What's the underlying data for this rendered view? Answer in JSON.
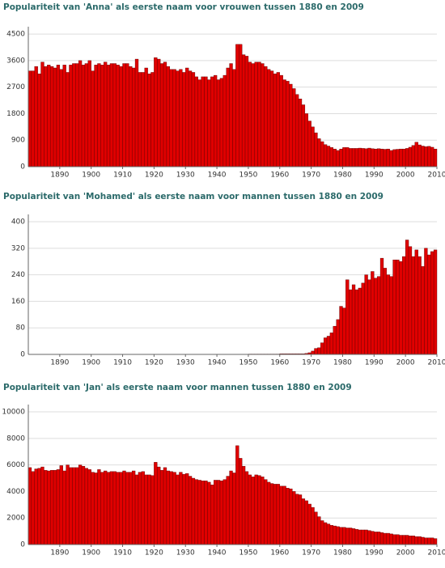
{
  "chart_data": [
    {
      "type": "bar",
      "title": "Populariteit van 'Anna' als eerste naam voor vrouwen tussen 1880 en 2009",
      "color": "#e00000",
      "x": [
        1880,
        1881,
        1882,
        1883,
        1884,
        1885,
        1886,
        1887,
        1888,
        1889,
        1890,
        1891,
        1892,
        1893,
        1894,
        1895,
        1896,
        1897,
        1898,
        1899,
        1900,
        1901,
        1902,
        1903,
        1904,
        1905,
        1906,
        1907,
        1908,
        1909,
        1910,
        1911,
        1912,
        1913,
        1914,
        1915,
        1916,
        1917,
        1918,
        1919,
        1920,
        1921,
        1922,
        1923,
        1924,
        1925,
        1926,
        1927,
        1928,
        1929,
        1930,
        1931,
        1932,
        1933,
        1934,
        1935,
        1936,
        1937,
        1938,
        1939,
        1940,
        1941,
        1942,
        1943,
        1944,
        1945,
        1946,
        1947,
        1948,
        1949,
        1950,
        1951,
        1952,
        1953,
        1954,
        1955,
        1956,
        1957,
        1958,
        1959,
        1960,
        1961,
        1962,
        1963,
        1964,
        1965,
        1966,
        1967,
        1968,
        1969,
        1970,
        1971,
        1972,
        1973,
        1974,
        1975,
        1976,
        1977,
        1978,
        1979,
        1980,
        1981,
        1982,
        1983,
        1984,
        1985,
        1986,
        1987,
        1988,
        1989,
        1990,
        1991,
        1992,
        1993,
        1994,
        1995,
        1996,
        1997,
        1998,
        1999,
        2000,
        2001,
        2002,
        2003,
        2004,
        2005,
        2006,
        2007,
        2008,
        2009
      ],
      "values": [
        3250,
        3250,
        3400,
        3150,
        3550,
        3400,
        3450,
        3400,
        3350,
        3450,
        3300,
        3450,
        3200,
        3450,
        3500,
        3500,
        3600,
        3450,
        3500,
        3600,
        3250,
        3450,
        3500,
        3450,
        3550,
        3450,
        3500,
        3500,
        3450,
        3400,
        3500,
        3500,
        3400,
        3350,
        3650,
        3200,
        3200,
        3350,
        3150,
        3200,
        3700,
        3650,
        3500,
        3550,
        3400,
        3300,
        3300,
        3250,
        3300,
        3200,
        3350,
        3250,
        3200,
        3050,
        2950,
        3050,
        3050,
        2950,
        3050,
        3100,
        2950,
        3000,
        3100,
        3350,
        3500,
        3300,
        4150,
        4150,
        3800,
        3750,
        3550,
        3500,
        3550,
        3550,
        3500,
        3400,
        3300,
        3250,
        3150,
        3200,
        3100,
        2950,
        2900,
        2800,
        2650,
        2450,
        2300,
        2100,
        1800,
        1550,
        1350,
        1150,
        950,
        850,
        750,
        700,
        650,
        600,
        550,
        600,
        650,
        650,
        620,
        620,
        620,
        630,
        620,
        610,
        630,
        610,
        600,
        610,
        600,
        590,
        600,
        550,
        580,
        590,
        600,
        600,
        620,
        660,
        720,
        830,
        740,
        700,
        680,
        690,
        660,
        600
      ],
      "xlim": [
        1880,
        2010
      ],
      "xticks": [
        1890,
        1900,
        1910,
        1920,
        1930,
        1940,
        1950,
        1960,
        1970,
        1980,
        1990,
        2000,
        2010
      ],
      "ylim": [
        0,
        4750
      ],
      "yticks": [
        0,
        900,
        1800,
        2700,
        3600,
        4500
      ],
      "grid": true
    },
    {
      "type": "bar",
      "title": "Populariteit van 'Mohamed' als eerste naam voor mannen tussen 1880 en 2009",
      "color": "#e00000",
      "x": [
        1880,
        1881,
        1882,
        1883,
        1884,
        1885,
        1886,
        1887,
        1888,
        1889,
        1890,
        1891,
        1892,
        1893,
        1894,
        1895,
        1896,
        1897,
        1898,
        1899,
        1900,
        1901,
        1902,
        1903,
        1904,
        1905,
        1906,
        1907,
        1908,
        1909,
        1910,
        1911,
        1912,
        1913,
        1914,
        1915,
        1916,
        1917,
        1918,
        1919,
        1920,
        1921,
        1922,
        1923,
        1924,
        1925,
        1926,
        1927,
        1928,
        1929,
        1930,
        1931,
        1932,
        1933,
        1934,
        1935,
        1936,
        1937,
        1938,
        1939,
        1940,
        1941,
        1942,
        1943,
        1944,
        1945,
        1946,
        1947,
        1948,
        1949,
        1950,
        1951,
        1952,
        1953,
        1954,
        1955,
        1956,
        1957,
        1958,
        1959,
        1960,
        1961,
        1962,
        1963,
        1964,
        1965,
        1966,
        1967,
        1968,
        1969,
        1970,
        1971,
        1972,
        1973,
        1974,
        1975,
        1976,
        1977,
        1978,
        1979,
        1980,
        1981,
        1982,
        1983,
        1984,
        1985,
        1986,
        1987,
        1988,
        1989,
        1990,
        1991,
        1992,
        1993,
        1994,
        1995,
        1996,
        1997,
        1998,
        1999,
        2000,
        2001,
        2002,
        2003,
        2004,
        2005,
        2006,
        2007,
        2008,
        2009
      ],
      "values": [
        0,
        0,
        0,
        0,
        0,
        0,
        0,
        0,
        0,
        0,
        0,
        0,
        0,
        0,
        0,
        0,
        0,
        0,
        0,
        0,
        0,
        0,
        0,
        0,
        0,
        0,
        0,
        0,
        0,
        0,
        0,
        0,
        0,
        0,
        0,
        0,
        0,
        0,
        0,
        0,
        0,
        0,
        0,
        0,
        0,
        0,
        0,
        0,
        0,
        0,
        0,
        0,
        0,
        0,
        0,
        0,
        0,
        0,
        0,
        0,
        0,
        0,
        0,
        0,
        0,
        0,
        0,
        0,
        0,
        0,
        1,
        1,
        1,
        1,
        1,
        1,
        1,
        1,
        1,
        1,
        2,
        2,
        2,
        2,
        2,
        2,
        2,
        2,
        3,
        5,
        10,
        18,
        20,
        35,
        50,
        55,
        65,
        85,
        105,
        145,
        140,
        225,
        195,
        210,
        195,
        200,
        215,
        240,
        225,
        250,
        230,
        235,
        290,
        260,
        240,
        235,
        285,
        285,
        280,
        295,
        345,
        325,
        295,
        315,
        295,
        265,
        320,
        300,
        310,
        315
      ],
      "xlim": [
        1880,
        2010
      ],
      "xticks": [
        1890,
        1900,
        1910,
        1920,
        1930,
        1940,
        1950,
        1960,
        1970,
        1980,
        1990,
        2000,
        2010
      ],
      "ylim": [
        0,
        422
      ],
      "yticks": [
        0,
        80,
        160,
        240,
        320,
        400
      ],
      "grid": true
    },
    {
      "type": "bar",
      "title": "Populariteit van 'Jan' als eerste naam voor mannen tussen 1880 en 2009",
      "color": "#e00000",
      "x": [
        1880,
        1881,
        1882,
        1883,
        1884,
        1885,
        1886,
        1887,
        1888,
        1889,
        1890,
        1891,
        1892,
        1893,
        1894,
        1895,
        1896,
        1897,
        1898,
        1899,
        1900,
        1901,
        1902,
        1903,
        1904,
        1905,
        1906,
        1907,
        1908,
        1909,
        1910,
        1911,
        1912,
        1913,
        1914,
        1915,
        1916,
        1917,
        1918,
        1919,
        1920,
        1921,
        1922,
        1923,
        1924,
        1925,
        1926,
        1927,
        1928,
        1929,
        1930,
        1931,
        1932,
        1933,
        1934,
        1935,
        1936,
        1937,
        1938,
        1939,
        1940,
        1941,
        1942,
        1943,
        1944,
        1945,
        1946,
        1947,
        1948,
        1949,
        1950,
        1951,
        1952,
        1953,
        1954,
        1955,
        1956,
        1957,
        1958,
        1959,
        1960,
        1961,
        1962,
        1963,
        1964,
        1965,
        1966,
        1967,
        1968,
        1969,
        1970,
        1971,
        1972,
        1973,
        1974,
        1975,
        1976,
        1977,
        1978,
        1979,
        1980,
        1981,
        1982,
        1983,
        1984,
        1985,
        1986,
        1987,
        1988,
        1989,
        1990,
        1991,
        1992,
        1993,
        1994,
        1995,
        1996,
        1997,
        1998,
        1999,
        2000,
        2001,
        2002,
        2003,
        2004,
        2005,
        2006,
        2007,
        2008,
        2009
      ],
      "values": [
        5800,
        5500,
        5700,
        5750,
        5850,
        5600,
        5550,
        5600,
        5600,
        5650,
        5950,
        5550,
        6000,
        5800,
        5800,
        5800,
        6000,
        5900,
        5750,
        5650,
        5450,
        5400,
        5650,
        5450,
        5550,
        5450,
        5500,
        5500,
        5450,
        5450,
        5550,
        5450,
        5450,
        5550,
        5250,
        5450,
        5500,
        5250,
        5250,
        5200,
        6200,
        5850,
        5600,
        5800,
        5550,
        5500,
        5450,
        5250,
        5450,
        5300,
        5350,
        5150,
        5000,
        4900,
        4850,
        4800,
        4800,
        4700,
        4500,
        4850,
        4850,
        4800,
        4900,
        5150,
        5550,
        5400,
        7450,
        6500,
        5900,
        5500,
        5250,
        5100,
        5250,
        5200,
        5100,
        4900,
        4700,
        4600,
        4550,
        4550,
        4400,
        4400,
        4250,
        4200,
        4000,
        3800,
        3750,
        3450,
        3300,
        3050,
        2800,
        2450,
        2100,
        1800,
        1650,
        1550,
        1450,
        1400,
        1350,
        1300,
        1300,
        1250,
        1250,
        1200,
        1150,
        1100,
        1100,
        1100,
        1050,
        1000,
        950,
        950,
        900,
        850,
        850,
        800,
        750,
        750,
        700,
        700,
        700,
        650,
        650,
        600,
        600,
        550,
        500,
        500,
        500,
        450
      ],
      "xlim": [
        1880,
        2010
      ],
      "xticks": [
        1890,
        1900,
        1910,
        1920,
        1930,
        1940,
        1950,
        1960,
        1970,
        1980,
        1990,
        2000,
        2010
      ],
      "ylim": [
        0,
        10550
      ],
      "yticks": [
        0,
        2000,
        4000,
        6000,
        8000,
        10000
      ],
      "grid": true
    }
  ]
}
